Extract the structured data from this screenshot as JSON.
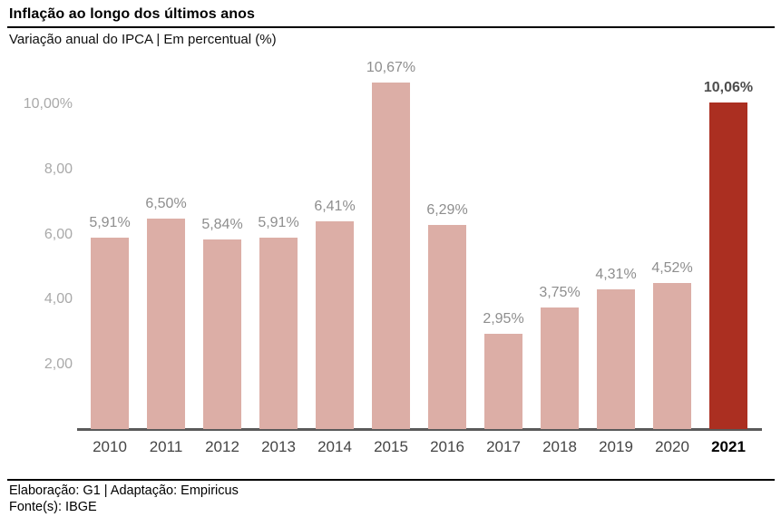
{
  "header": {
    "title": "Inflação ao longo dos últimos anos",
    "subtitle": "Variação anual do IPCA | Em percentual (%)"
  },
  "footer": {
    "credits": "Elaboração: G1 | Adaptação: Empiricus",
    "source": "Fonte(s): IBGE"
  },
  "chart_data": {
    "type": "bar",
    "title": "Inflação ao longo dos últimos anos",
    "subtitle": "Variação anual do IPCA | Em percentual (%)",
    "categories": [
      "2010",
      "2011",
      "2012",
      "2013",
      "2014",
      "2015",
      "2016",
      "2017",
      "2018",
      "2019",
      "2020",
      "2021"
    ],
    "values": [
      5.91,
      6.5,
      5.84,
      5.91,
      6.41,
      10.67,
      6.29,
      2.95,
      3.75,
      4.31,
      4.52,
      10.06
    ],
    "value_labels": [
      "5,91%",
      "6,50%",
      "5,84%",
      "5,91%",
      "6,41%",
      "10,67%",
      "6,29%",
      "2,95%",
      "3,75%",
      "4,31%",
      "4,52%",
      "10,06%"
    ],
    "highlight_index": 11,
    "y_ticks": [
      {
        "value": 10,
        "label": "10,00%"
      },
      {
        "value": 8,
        "label": "8,00"
      },
      {
        "value": 6,
        "label": "6,00"
      },
      {
        "value": 4,
        "label": "4,00"
      },
      {
        "value": 2,
        "label": "2,00"
      }
    ],
    "ylim": [
      0,
      11.1
    ],
    "xlabel": "",
    "ylabel": "",
    "grid": false,
    "legend": false,
    "colors": {
      "bar": "#DCAEA6",
      "bar_highlight": "#AB2F21",
      "value_label": "#8E8E8E",
      "value_label_highlight": "#4E4E4E",
      "y_tick_label": "#A9A9A9",
      "year_label": "#454545",
      "year_label_highlight": "#000000",
      "axis_line": "#5A5A5A"
    }
  }
}
